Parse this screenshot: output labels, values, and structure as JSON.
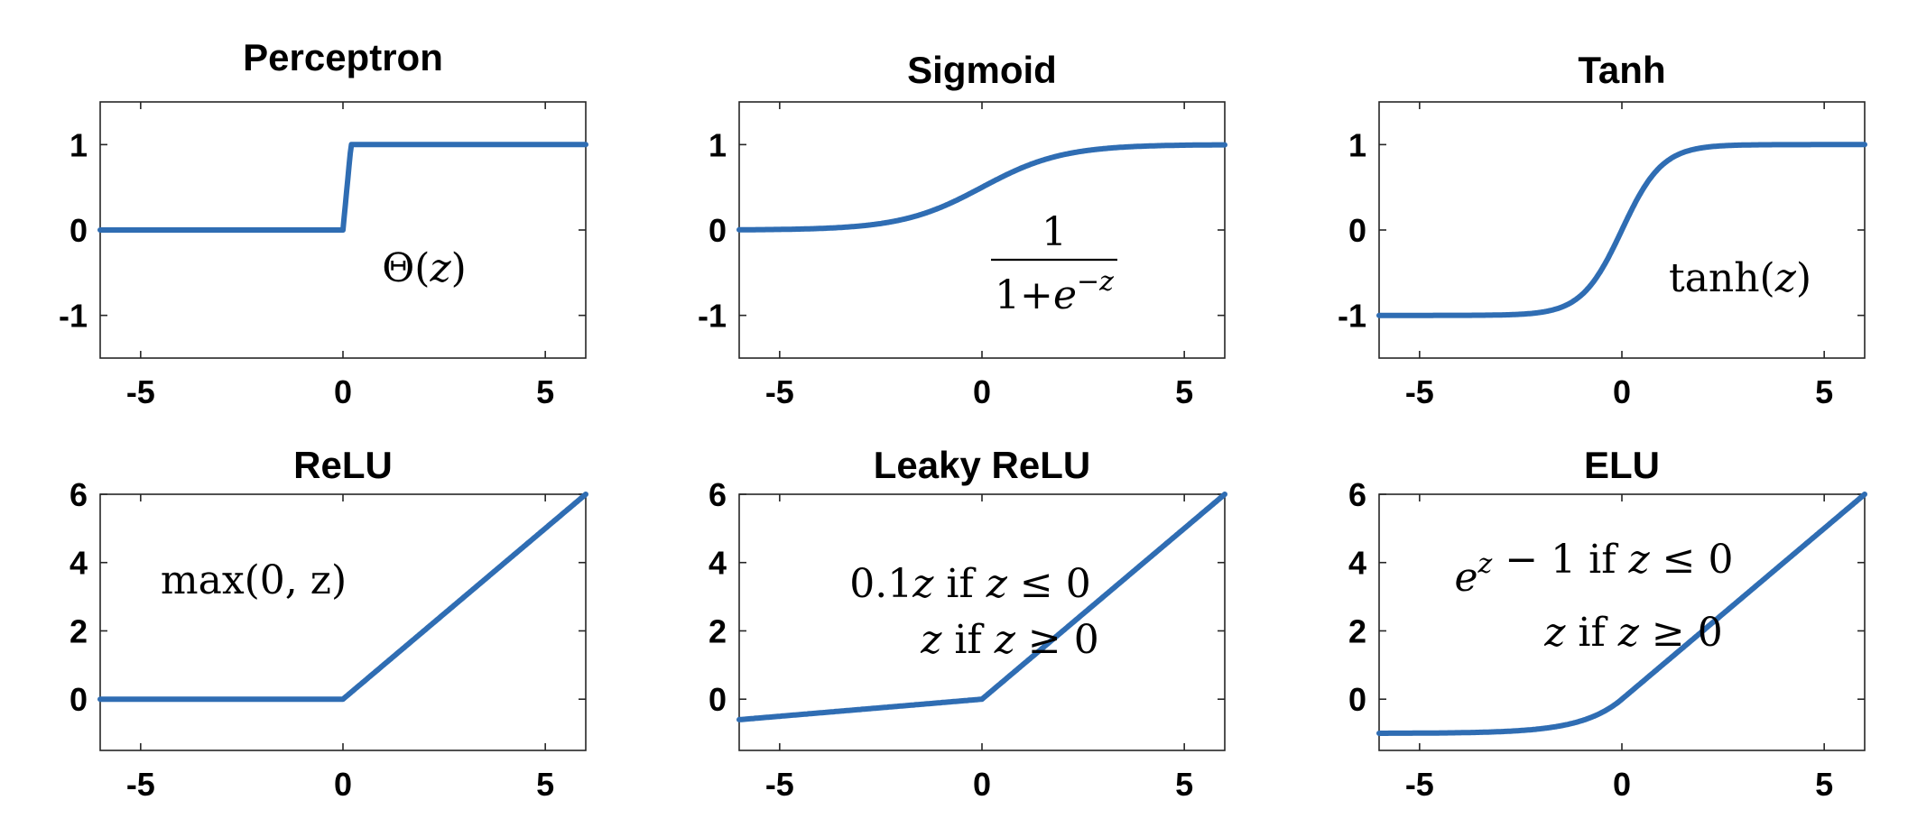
{
  "chart_data": [
    {
      "type": "line",
      "title": "Perceptron",
      "function": "step",
      "xlim": [
        -6,
        6
      ],
      "ylim": [
        -1.5,
        1.5
      ],
      "xticks": [
        -5,
        0,
        5
      ],
      "yticks": [
        -1,
        0,
        1
      ],
      "xtick_labels": [
        "-5",
        "0",
        "5"
      ],
      "ytick_labels": [
        "-1",
        "0",
        "1"
      ],
      "annotation": [
        "Θ(z)"
      ],
      "series": [
        {
          "x": [
            -6,
            0,
            0.2,
            6
          ],
          "y": [
            0,
            0,
            1,
            1
          ]
        }
      ]
    },
    {
      "type": "line",
      "title": "Sigmoid",
      "function": "sigmoid",
      "xlim": [
        -6,
        6
      ],
      "ylim": [
        -1.5,
        1.5
      ],
      "xticks": [
        -5,
        0,
        5
      ],
      "yticks": [
        -1,
        0,
        1
      ],
      "xtick_labels": [
        "-5",
        "0",
        "5"
      ],
      "ytick_labels": [
        "-1",
        "0",
        "1"
      ],
      "annotation_numerator": "1",
      "annotation_denominator": "1+e",
      "annotation_denominator_sup": "−z",
      "series": [
        {
          "x": [
            -6,
            -4,
            -2,
            0,
            2,
            4,
            6
          ],
          "y": [
            0.0025,
            0.018,
            0.119,
            0.5,
            0.881,
            0.982,
            0.9975
          ]
        }
      ]
    },
    {
      "type": "line",
      "title": "Tanh",
      "function": "tanh",
      "xlim": [
        -6,
        6
      ],
      "ylim": [
        -1.5,
        1.5
      ],
      "xticks": [
        -5,
        0,
        5
      ],
      "yticks": [
        -1,
        0,
        1
      ],
      "xtick_labels": [
        "-5",
        "0",
        "5"
      ],
      "ytick_labels": [
        "-1",
        "0",
        "1"
      ],
      "annotation": [
        "tanh(z)"
      ],
      "series": [
        {
          "x": [
            -6,
            -2,
            -1,
            0,
            1,
            2,
            6
          ],
          "y": [
            -1,
            -0.964,
            -0.762,
            0,
            0.762,
            0.964,
            1
          ]
        }
      ]
    },
    {
      "type": "line",
      "title": "ReLU",
      "function": "relu",
      "xlim": [
        -6,
        6
      ],
      "ylim": [
        -1.5,
        6
      ],
      "xticks": [
        -5,
        0,
        5
      ],
      "yticks": [
        0,
        2,
        4,
        6
      ],
      "xtick_labels": [
        "-5",
        "0",
        "5"
      ],
      "ytick_labels": [
        "0",
        "2",
        "4",
        "6"
      ],
      "annotation": [
        "max(0, z)"
      ],
      "series": [
        {
          "x": [
            -6,
            0,
            6
          ],
          "y": [
            0,
            0,
            6
          ]
        }
      ]
    },
    {
      "type": "line",
      "title": "Leaky ReLU",
      "function": "leaky_relu",
      "xlim": [
        -6,
        6
      ],
      "ylim": [
        -1.5,
        6
      ],
      "xticks": [
        -5,
        0,
        5
      ],
      "yticks": [
        0,
        2,
        4,
        6
      ],
      "xtick_labels": [
        "-5",
        "0",
        "5"
      ],
      "ytick_labels": [
        "0",
        "2",
        "4",
        "6"
      ],
      "annotation": [
        "0.1z if z ≤ 0",
        "z if z ≥ 0"
      ],
      "series": [
        {
          "x": [
            -6,
            0,
            6
          ],
          "y": [
            -0.6,
            0,
            6
          ]
        }
      ]
    },
    {
      "type": "line",
      "title": "ELU",
      "function": "elu",
      "xlim": [
        -6,
        6
      ],
      "ylim": [
        -1.5,
        6
      ],
      "xticks": [
        -5,
        0,
        5
      ],
      "yticks": [
        0,
        2,
        4,
        6
      ],
      "xtick_labels": [
        "-5",
        "0",
        "5"
      ],
      "ytick_labels": [
        "0",
        "2",
        "4",
        "6"
      ],
      "annotation_line1_base": "e",
      "annotation_line1_sup": "z",
      "annotation_line1_rest": " − 1 if z ≤ 0",
      "annotation": [
        "z if z ≥ 0"
      ],
      "series": [
        {
          "x": [
            -6,
            -3,
            -1,
            0,
            6
          ],
          "y": [
            -0.9975,
            -0.95,
            -0.632,
            0,
            6
          ]
        }
      ]
    }
  ],
  "colors": {
    "line": "#2f6db3",
    "axes": "#262626"
  }
}
